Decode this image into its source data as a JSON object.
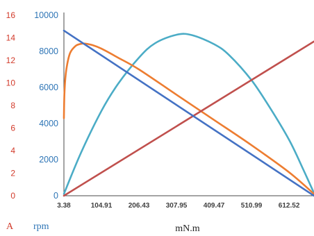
{
  "chart_data": {
    "type": "line",
    "xlabel": "mN.m",
    "x_ticks": [
      "3.38",
      "104.91",
      "206.43",
      "307.95",
      "409.47",
      "510.99",
      "612.52"
    ],
    "xlim": [
      3.38,
      680
    ],
    "y_left": {
      "label": "A",
      "ticks": [
        "0",
        "2",
        "4",
        "6",
        "8",
        "10",
        "12",
        "14",
        "16"
      ],
      "range": [
        0,
        16
      ],
      "color": "#d23a2a"
    },
    "y_right": {
      "label": "rpm",
      "ticks": [
        "0",
        "2000",
        "4000",
        "6000",
        "8000",
        "10000"
      ],
      "range": [
        0,
        10000
      ],
      "color": "#2e75b6"
    },
    "grid": false,
    "series": [
      {
        "color": "#4472c4",
        "axis": "rpm",
        "x": [
          3.38,
          680
        ],
        "y": [
          9150,
          0
        ]
      },
      {
        "color": "#c0504d",
        "axis": "rpm",
        "x": [
          3.38,
          680
        ],
        "y": [
          0,
          8550
        ]
      },
      {
        "color": "#ed7d31",
        "axis": "rpm",
        "x": [
          3.38,
          5,
          10,
          20,
          35,
          50,
          60,
          80,
          104.91,
          150,
          206.43,
          307.95,
          409.47,
          510.99,
          612.52,
          680
        ],
        "y": [
          4300,
          5800,
          7000,
          7900,
          8300,
          8420,
          8430,
          8350,
          8150,
          7650,
          7000,
          5600,
          4200,
          2800,
          1300,
          100
        ]
      },
      {
        "color": "#4bacc6",
        "axis": "rpm",
        "x": [
          3.38,
          50,
          104.91,
          150,
          206.43,
          250,
          307.95,
          350,
          409.47,
          450,
          510.99,
          560,
          612.52,
          650,
          680
        ],
        "y": [
          100,
          2400,
          4700,
          6200,
          7650,
          8450,
          8920,
          8900,
          8400,
          7800,
          6400,
          4900,
          3100,
          1500,
          150
        ]
      }
    ]
  }
}
